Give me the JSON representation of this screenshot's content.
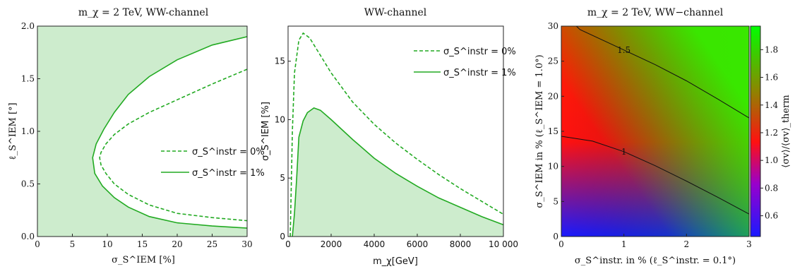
{
  "chart_data": [
    {
      "type": "area",
      "title": "m_χ = 2 TeV, WW-channel",
      "xlabel": "σ_S^IEM [%]",
      "ylabel": "ℓ_S^IEM [°]",
      "xlim": [
        0,
        30
      ],
      "ylim": [
        0,
        2.0
      ],
      "x_ticks": [
        "0",
        "5",
        "10",
        "15",
        "20",
        "25",
        "30"
      ],
      "y_ticks": [
        "0.0",
        "0.5",
        "1.0",
        "1.5",
        "2.0"
      ],
      "legend_position": "right",
      "fill_color": "#cdeccd",
      "line_color": "#22aa22",
      "series": [
        {
          "name": "σ_S^instr = 0%",
          "style": "dashed",
          "x": [
            30,
            25,
            20,
            16,
            13,
            11,
            9.8,
            9.1,
            8.9,
            9.1,
            9.8,
            11,
            13,
            16,
            20,
            25,
            30
          ],
          "y": [
            1.59,
            1.45,
            1.3,
            1.18,
            1.07,
            0.97,
            0.88,
            0.8,
            0.75,
            0.68,
            0.6,
            0.5,
            0.4,
            0.3,
            0.22,
            0.18,
            0.15
          ]
        },
        {
          "name": "σ_S^instr = 1%",
          "style": "solid",
          "x": [
            30,
            25,
            20,
            16,
            13,
            11,
            9.5,
            8.4,
            7.9,
            8.2,
            9.3,
            11,
            13,
            16,
            20,
            25,
            30
          ],
          "y": [
            1.9,
            1.82,
            1.68,
            1.52,
            1.35,
            1.18,
            1.02,
            0.88,
            0.75,
            0.6,
            0.48,
            0.37,
            0.28,
            0.19,
            0.13,
            0.1,
            0.08
          ]
        }
      ]
    },
    {
      "type": "line",
      "title": "WW-channel",
      "xlabel": "m_χ[GeV]",
      "ylabel": "σ_S^IEM [%]",
      "xlim": [
        0,
        10000
      ],
      "ylim": [
        0,
        18
      ],
      "x_ticks": [
        "0",
        "2000",
        "4000",
        "6000",
        "8000",
        "10 000"
      ],
      "y_ticks": [
        "0",
        "5",
        "10",
        "15"
      ],
      "legend_position": "top-right",
      "fill_color": "#cdeccd",
      "line_color": "#22aa22",
      "series": [
        {
          "name": "σ_S^instr = 0%",
          "style": "dashed",
          "x": [
            100,
            200,
            300,
            500,
            700,
            1000,
            1500,
            2000,
            3000,
            4000,
            5000,
            6000,
            7000,
            8000,
            9000,
            10000
          ],
          "y": [
            0,
            9,
            14,
            16.8,
            17.4,
            17,
            15.5,
            14,
            11.5,
            9.6,
            8,
            6.6,
            5.3,
            4.1,
            3,
            1.9
          ]
        },
        {
          "name": "σ_S^instr = 1%",
          "style": "solid",
          "x": [
            200,
            300,
            400,
            500,
            700,
            900,
            1200,
            1500,
            2000,
            3000,
            4000,
            5000,
            6000,
            7000,
            8000,
            9000,
            10000
          ],
          "y": [
            0,
            2,
            5,
            8.5,
            9.9,
            10.6,
            11,
            10.8,
            10,
            8.3,
            6.7,
            5.4,
            4.3,
            3.3,
            2.5,
            1.7,
            1
          ]
        }
      ]
    },
    {
      "type": "heatmap",
      "title": "m_χ = 2 TeV, WW−channel",
      "xlabel": "σ_S^instr. in % (ℓ_S^instr. = 0.1°)",
      "ylabel": "σ_S^IEM in % (ℓ_S^IEM = 1.0°)",
      "xlim": [
        0,
        3
      ],
      "ylim": [
        0,
        30
      ],
      "x_ticks": [
        "0",
        "1",
        "2",
        "3"
      ],
      "y_ticks": [
        "0",
        "5",
        "10",
        "15",
        "20",
        "25",
        "30"
      ],
      "colorbar_label": "⟨σv⟩/⟨σv⟩_therm",
      "colorbar_ticks": [
        "0.6",
        "0.8",
        "1.0",
        "1.2",
        "1.4",
        "1.6",
        "1.8"
      ],
      "colorbar_range": [
        0.45,
        1.97
      ],
      "contours": [
        {
          "label": "1.5",
          "x": [
            0,
            0.3,
            1,
            1.5,
            2,
            2.5,
            3
          ],
          "y": [
            32,
            29.5,
            26.6,
            24.5,
            22.2,
            19.6,
            16.9
          ]
        },
        {
          "label": "1",
          "x": [
            0,
            0.5,
            1,
            1.5,
            2,
            2.5,
            3
          ],
          "y": [
            14.3,
            13.6,
            12.1,
            10.1,
            7.9,
            5.6,
            3.2
          ]
        }
      ]
    }
  ]
}
